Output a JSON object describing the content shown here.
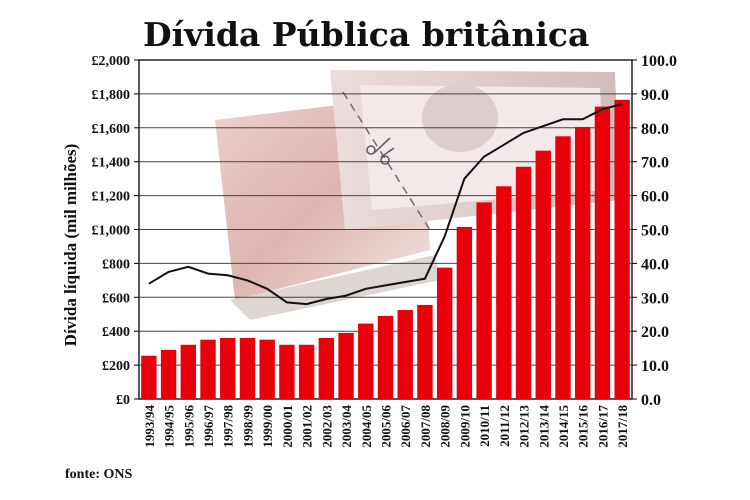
{
  "chart_data": {
    "type": "bar",
    "title": "Dívida Pública britânica",
    "ylabel": "Dívida líquida (mil milhões)",
    "source": "fonte: ONS",
    "ylim": [
      0,
      2000
    ],
    "y_ticks": [
      "£0",
      "£200",
      "£400",
      "£600",
      "£800",
      "£1,000",
      "£1,200",
      "£1,400",
      "£1,600",
      "£1,800",
      "£2,000"
    ],
    "y2lim": [
      0,
      100
    ],
    "y2_ticks": [
      "0.0",
      "10.0",
      "20.0",
      "30.0",
      "40.0",
      "50.0",
      "60.0",
      "70.0",
      "80.0",
      "90.0",
      "100.0"
    ],
    "grid": true,
    "categories": [
      "1993/94",
      "1994/95",
      "1995/96",
      "1996/97",
      "1997/98",
      "1998/99",
      "1999/00",
      "2000/01",
      "2001/02",
      "2002/03",
      "2003/04",
      "2004/05",
      "2005/06",
      "2006/07",
      "2007/08",
      "2008/09",
      "2009/10",
      "2010/11",
      "2011/12",
      "2012/13",
      "2013/14",
      "2014/15",
      "2015/16",
      "2016/17",
      "2017/18"
    ],
    "series": [
      {
        "type": "bar",
        "axis": "left",
        "color": "#e8000b",
        "values": [
          255,
          290,
          320,
          350,
          360,
          360,
          350,
          320,
          320,
          360,
          390,
          445,
          490,
          525,
          555,
          775,
          1015,
          1160,
          1255,
          1370,
          1465,
          1550,
          1605,
          1725,
          1765
        ]
      },
      {
        "type": "line",
        "axis": "right",
        "color": "#111111",
        "values": [
          34,
          37.5,
          39,
          37,
          36.5,
          35,
          32.5,
          28.5,
          28,
          29.5,
          30.5,
          32.5,
          33.5,
          34.5,
          35.5,
          48,
          65,
          71.5,
          75,
          78.5,
          80.5,
          82.5,
          82.5,
          85.5,
          87
        ]
      }
    ]
  }
}
